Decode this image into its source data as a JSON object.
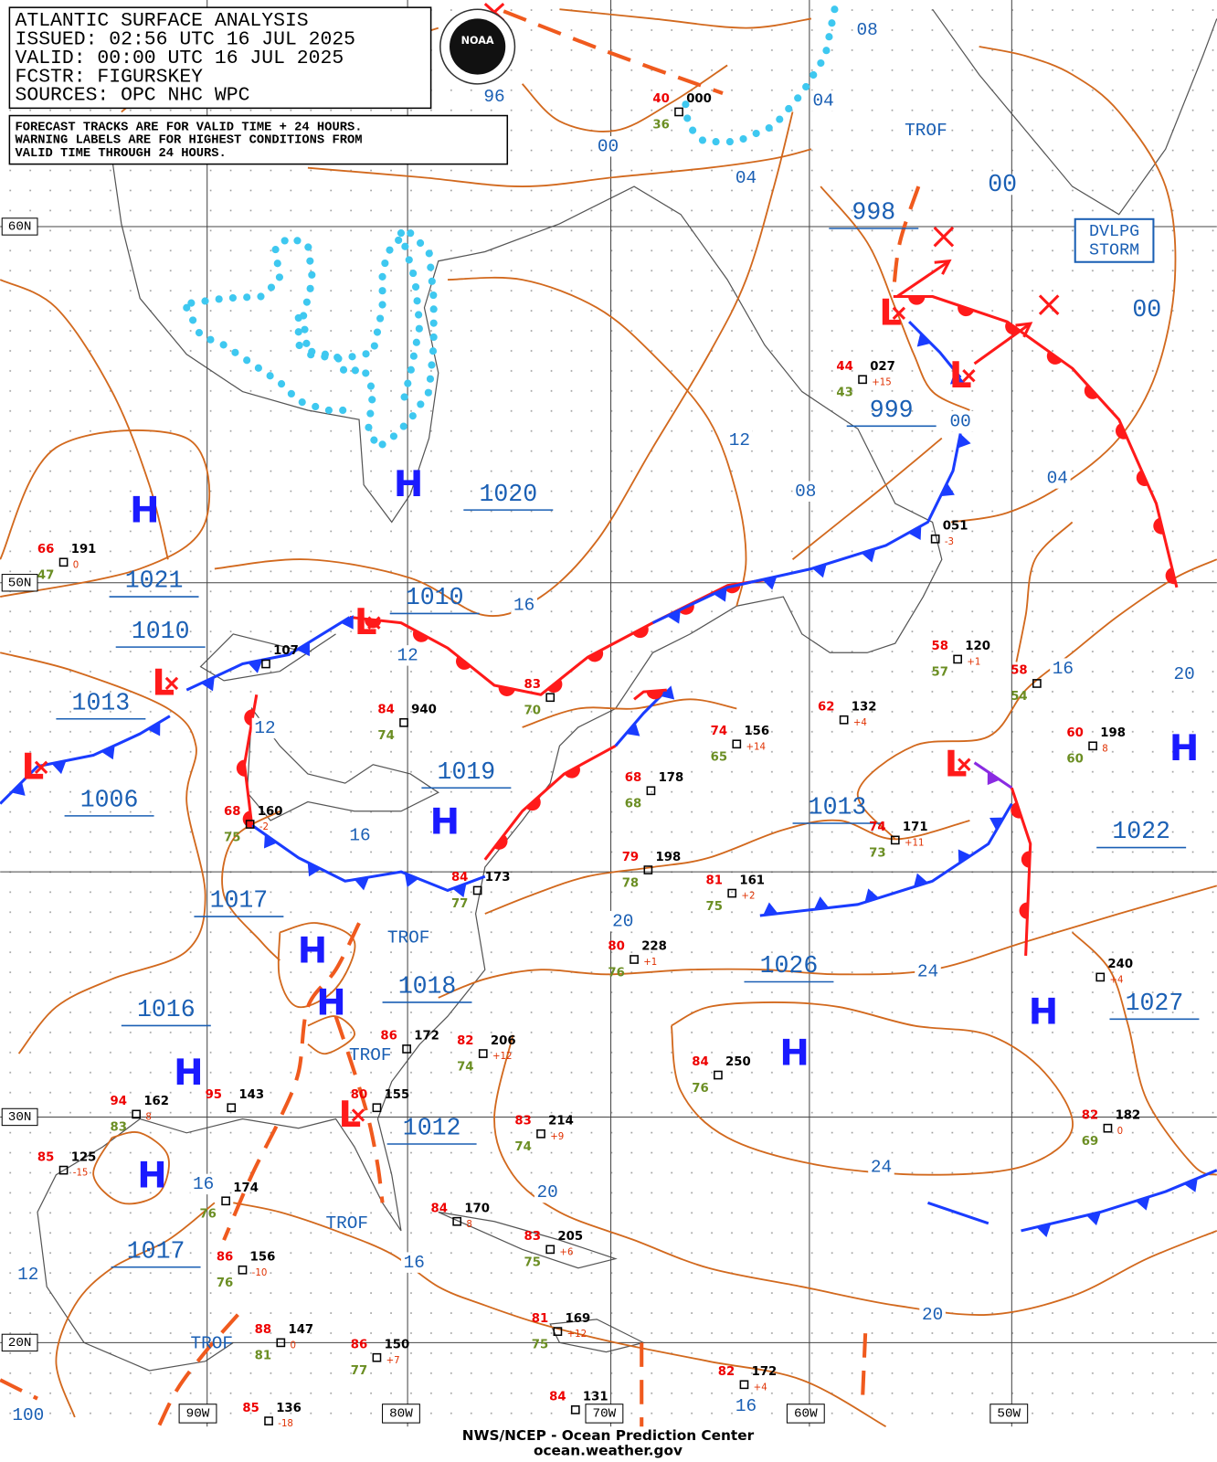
{
  "header": {
    "lines": [
      "ATLANTIC SURFACE ANALYSIS",
      "ISSUED: 02:56 UTC 16 JUL 2025",
      "VALID:  00:00 UTC 16 JUL 2025",
      "FCSTR:  FIGURSKEY",
      "SOURCES: OPC NHC WPC"
    ]
  },
  "logo": "NOAA",
  "notice": [
    "FORECAST TRACKS ARE FOR VALID TIME + 24 HOURS.",
    "WARNING LABELS ARE FOR HIGHEST CONDITIONS FROM",
    "VALID TIME THROUGH 24 HOURS."
  ],
  "latitudes": [
    "60N",
    "50N",
    "30N",
    "20N"
  ],
  "longitudes": [
    "90W",
    "80W",
    "70W",
    "60W",
    "50W"
  ],
  "pressure_labels": [
    1020,
    1021,
    1010,
    1010,
    1013,
    1006,
    1019,
    1017,
    1018,
    1016,
    1012,
    1017,
    1013,
    1026,
    1022,
    1027,
    998,
    999
  ],
  "highs": [
    "H",
    "H",
    "H",
    "H",
    "H",
    "H",
    "H",
    "H",
    "H",
    "H"
  ],
  "lows": [
    "L",
    "L",
    "L",
    "L",
    "L",
    "L",
    "L"
  ],
  "isobar_labels": [
    "08",
    "04",
    "00",
    "96",
    "04",
    "00",
    "00",
    "12",
    "08",
    "00",
    "04",
    "16",
    "12",
    "12",
    "16",
    "16",
    "20",
    "20",
    "24",
    "24",
    "20",
    "16",
    "16",
    "12",
    "20",
    "16",
    "100"
  ],
  "trough_labels": [
    "TROF",
    "TROF",
    "TROF",
    "TROF",
    "TROF"
  ],
  "warning": [
    "DVLPG",
    "STORM"
  ],
  "stations": [
    {
      "temp": "66",
      "dew": "47",
      "pressure": "191",
      "tendency": "0"
    },
    {
      "temp": "84",
      "dew": "74",
      "pressure": "940",
      "tendency": ""
    },
    {
      "temp": "83",
      "dew": "70",
      "pressure": "",
      "tendency": ""
    },
    {
      "temp": "44",
      "dew": "43",
      "pressure": "027",
      "tendency": "+15"
    },
    {
      "temp": "40",
      "dew": "36",
      "pressure": "000",
      "tendency": ""
    },
    {
      "temp": "58",
      "dew": "57",
      "pressure": "120",
      "tendency": "+1"
    },
    {
      "temp": "62",
      "dew": "",
      "pressure": "132",
      "tendency": "+4"
    },
    {
      "temp": "74",
      "dew": "65",
      "pressure": "156",
      "tendency": "+14"
    },
    {
      "temp": "68",
      "dew": "68",
      "pressure": "178",
      "tendency": ""
    },
    {
      "temp": "74",
      "dew": "73",
      "pressure": "171",
      "tendency": "+11"
    },
    {
      "temp": "79",
      "dew": "78",
      "pressure": "198",
      "tendency": ""
    },
    {
      "temp": "81",
      "dew": "75",
      "pressure": "161",
      "tendency": "+2"
    },
    {
      "temp": "80",
      "dew": "76",
      "pressure": "228",
      "tendency": "+1"
    },
    {
      "temp": "84",
      "dew": "77",
      "pressure": "173",
      "tendency": ""
    },
    {
      "temp": "86",
      "dew": "",
      "pressure": "172",
      "tendency": ""
    },
    {
      "temp": "82",
      "dew": "74",
      "pressure": "206",
      "tendency": "+12"
    },
    {
      "temp": "84",
      "dew": "76",
      "pressure": "250",
      "tendency": ""
    },
    {
      "temp": "83",
      "dew": "74",
      "pressure": "214",
      "tendency": "+9"
    },
    {
      "temp": "80",
      "dew": "",
      "pressure": "155",
      "tendency": ""
    },
    {
      "temp": "94",
      "dew": "83",
      "pressure": "162",
      "tendency": "8"
    },
    {
      "temp": "95",
      "dew": "",
      "pressure": "143",
      "tendency": ""
    },
    {
      "temp": "85",
      "dew": "",
      "pressure": "125",
      "tendency": "-15"
    },
    {
      "temp": "",
      "dew": "76",
      "pressure": "174",
      "tendency": ""
    },
    {
      "temp": "86",
      "dew": "76",
      "pressure": "156",
      "tendency": "-10"
    },
    {
      "temp": "84",
      "dew": "",
      "pressure": "170",
      "tendency": "8"
    },
    {
      "temp": "83",
      "dew": "75",
      "pressure": "205",
      "tendency": "+6"
    },
    {
      "temp": "81",
      "dew": "75",
      "pressure": "169",
      "tendency": "+12"
    },
    {
      "temp": "88",
      "dew": "81",
      "pressure": "147",
      "tendency": "0"
    },
    {
      "temp": "86",
      "dew": "77",
      "pressure": "150",
      "tendency": "+7"
    },
    {
      "temp": "84",
      "dew": "",
      "pressure": "131",
      "tendency": ""
    },
    {
      "temp": "85",
      "dew": "",
      "pressure": "136",
      "tendency": "-18"
    },
    {
      "temp": "82",
      "dew": "",
      "pressure": "172",
      "tendency": "+4"
    },
    {
      "temp": "60",
      "dew": "60",
      "pressure": "198",
      "tendency": "8"
    },
    {
      "temp": "82",
      "dew": "69",
      "pressure": "182",
      "tendency": "0"
    },
    {
      "temp": "",
      "dew": "",
      "pressure": "240",
      "tendency": "+4"
    },
    {
      "temp": "",
      "dew": "",
      "pressure": "051",
      "tendency": "-3"
    },
    {
      "temp": "68",
      "dew": "75",
      "pressure": "160",
      "tendency": "-2"
    },
    {
      "temp": "",
      "dew": "",
      "pressure": "107",
      "tendency": ""
    },
    {
      "temp": "58",
      "dew": "54",
      "pressure": "",
      "tendency": ""
    }
  ],
  "footer": [
    "NWS/NCEP - Ocean Prediction Center",
    "ocean.weather.gov"
  ]
}
